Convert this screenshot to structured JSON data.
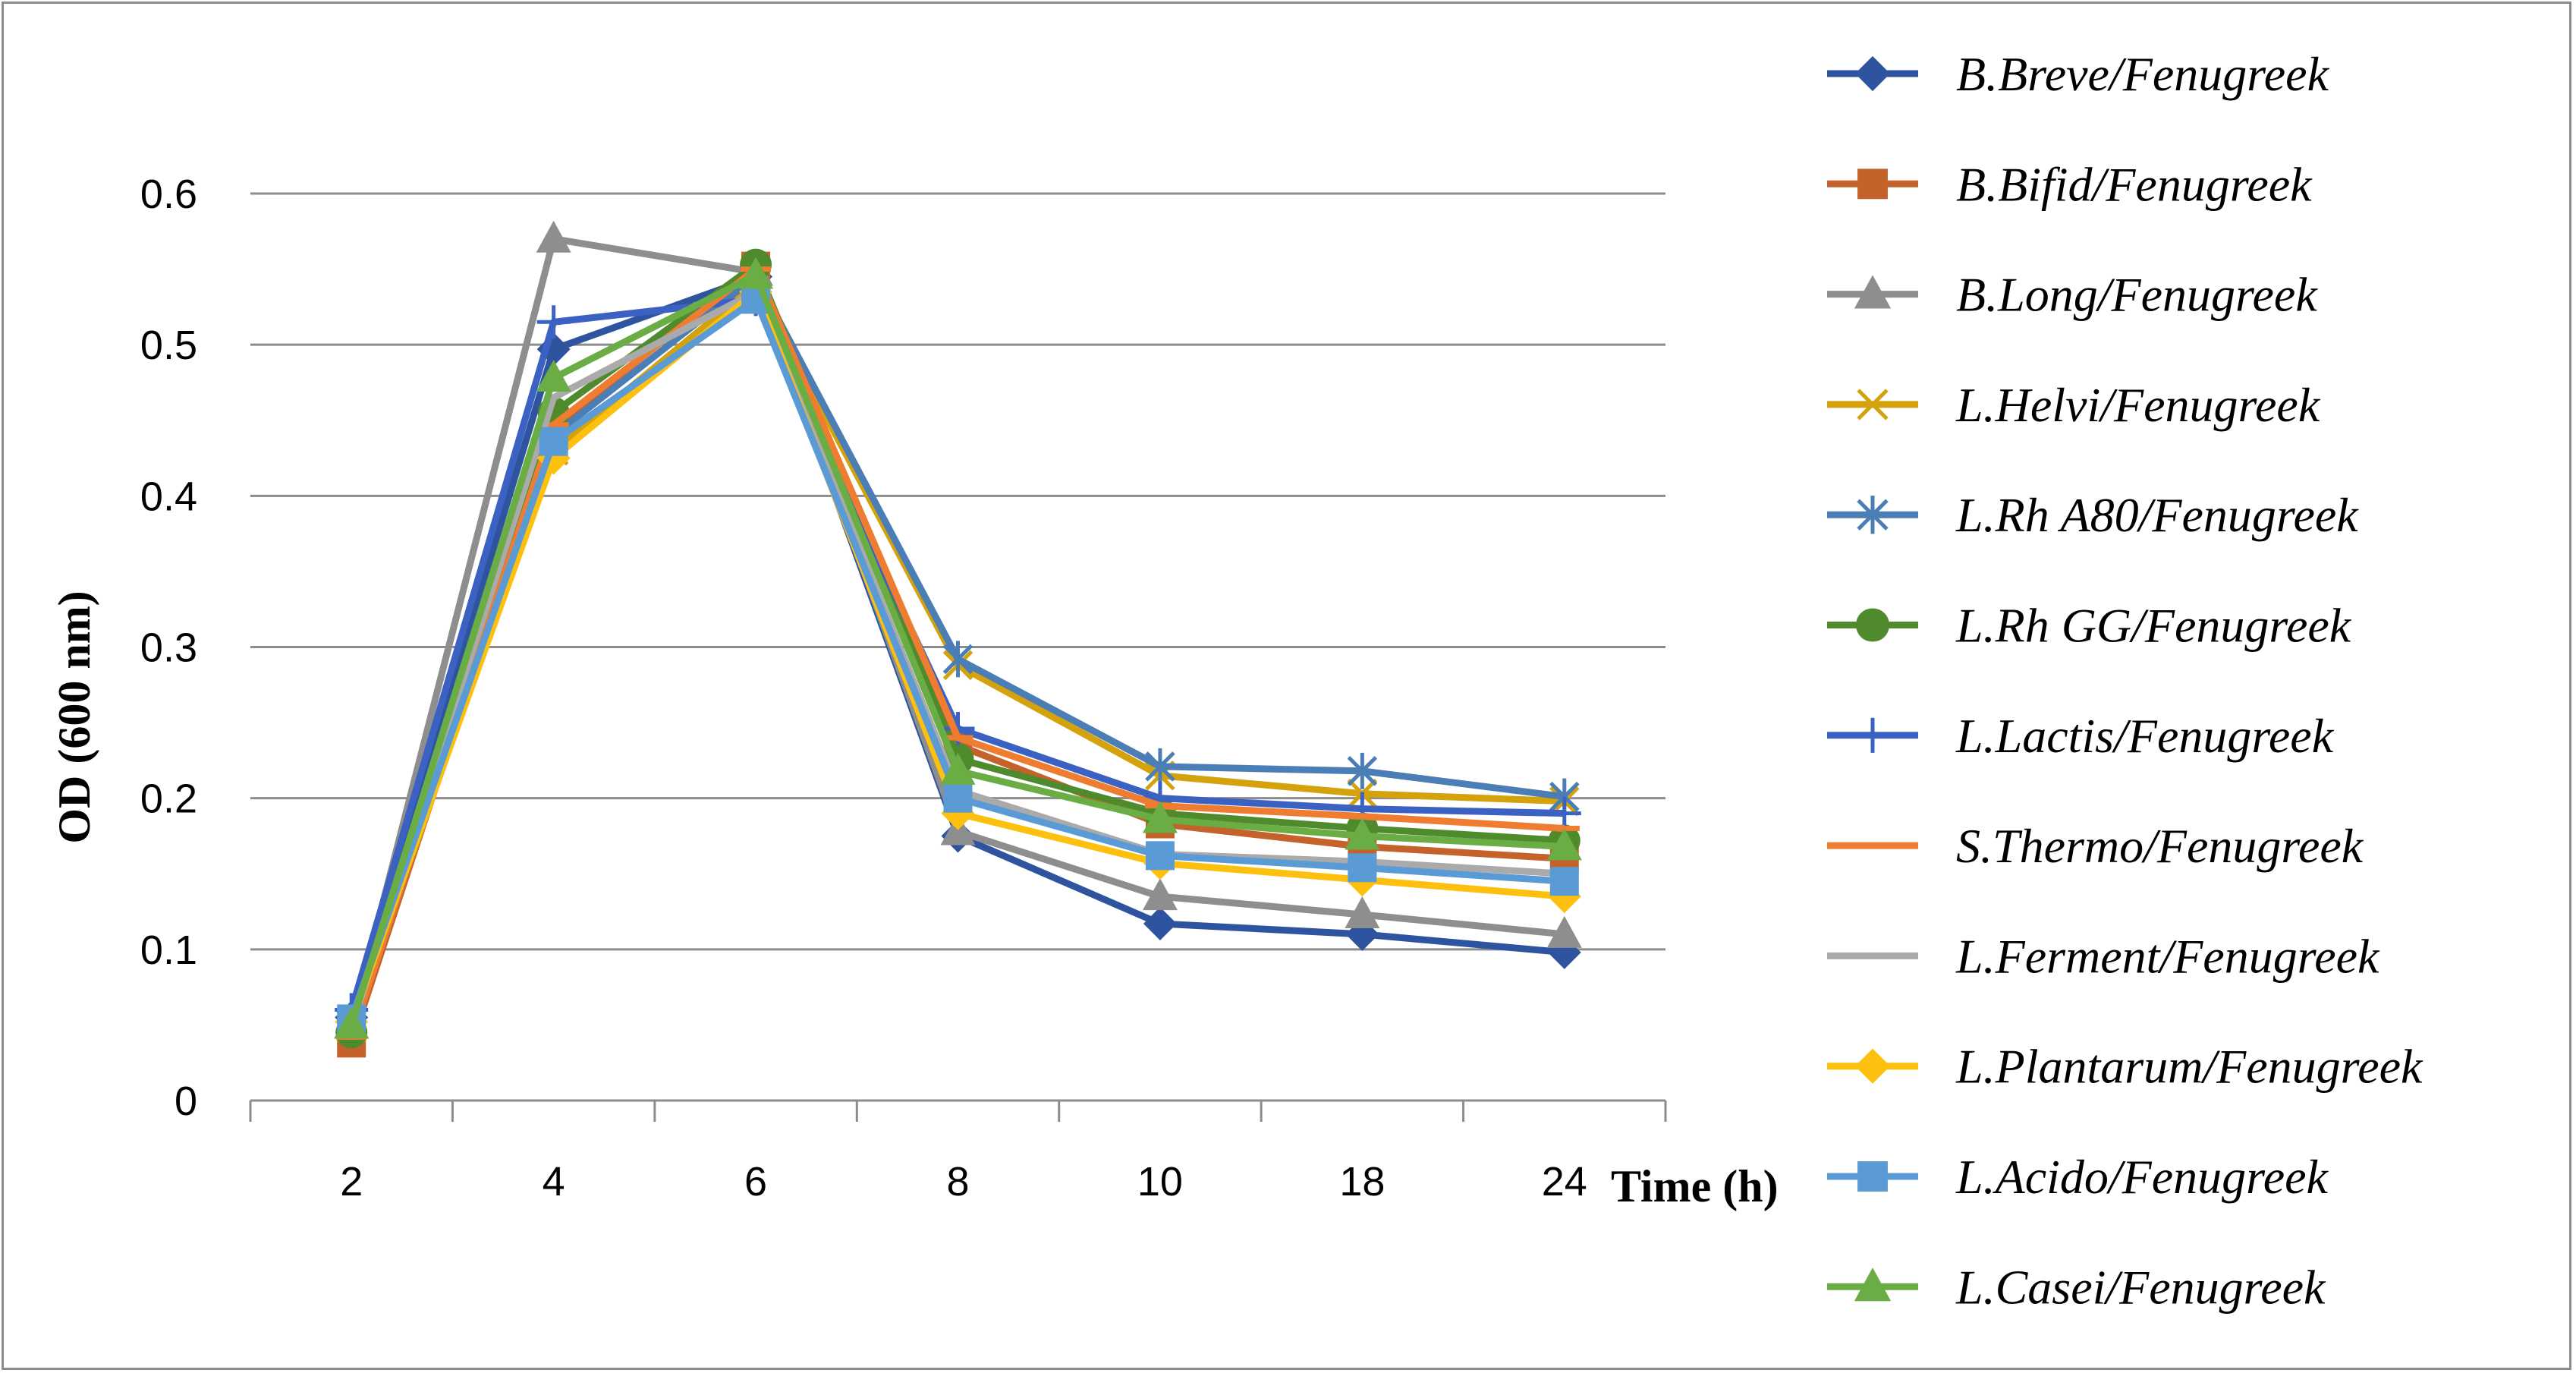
{
  "chart_data": {
    "type": "line",
    "title": "",
    "xlabel": "Time (h)",
    "ylabel": "OD (600 nm)",
    "categories": [
      "2",
      "4",
      "6",
      "8",
      "10",
      "18",
      "24"
    ],
    "ylim": [
      0,
      0.6
    ],
    "yticks": [
      "0",
      "0.1",
      "0.2",
      "0.3",
      "0.4",
      "0.5",
      "0.6"
    ],
    "grid": true,
    "legend_position": "right",
    "series": [
      {
        "name": "B.Breve/Fenugreek",
        "color": "#2e54a0",
        "marker": "diamond",
        "values": [
          0.055,
          0.497,
          0.545,
          0.175,
          0.117,
          0.11,
          0.098
        ]
      },
      {
        "name": "B.Bifid/Fenugreek",
        "color": "#c5612a",
        "marker": "square",
        "values": [
          0.038,
          0.445,
          0.552,
          0.235,
          0.183,
          0.168,
          0.16
        ]
      },
      {
        "name": "B.Long/Fenugreek",
        "color": "#8e8e8e",
        "marker": "triangle",
        "values": [
          0.05,
          0.57,
          0.548,
          0.178,
          0.135,
          0.123,
          0.11
        ]
      },
      {
        "name": "L.Helvi/Fenugreek",
        "color": "#d4a20c",
        "marker": "x",
        "values": [
          0.048,
          0.43,
          0.54,
          0.288,
          0.215,
          0.203,
          0.198
        ]
      },
      {
        "name": "L.Rh A80/Fenugreek",
        "color": "#4a7eb5",
        "marker": "star",
        "values": [
          0.05,
          0.44,
          0.545,
          0.292,
          0.221,
          0.218,
          0.201
        ]
      },
      {
        "name": "L.Rh GG/Fenugreek",
        "color": "#4f8b2c",
        "marker": "circle",
        "values": [
          0.045,
          0.455,
          0.553,
          0.226,
          0.19,
          0.18,
          0.172
        ]
      },
      {
        "name": "L.Lactis/Fenugreek",
        "color": "#3b62c2",
        "marker": "plus",
        "values": [
          0.06,
          0.515,
          0.53,
          0.246,
          0.2,
          0.193,
          0.19
        ]
      },
      {
        "name": "S.Thermo/Fenugreek",
        "color": "#ee7d31",
        "marker": "dash",
        "values": [
          0.042,
          0.447,
          0.55,
          0.24,
          0.195,
          0.188,
          0.18
        ]
      },
      {
        "name": "L.Ferment/Fenugreek",
        "color": "#aaaaaa",
        "marker": "none",
        "values": [
          0.048,
          0.465,
          0.535,
          0.205,
          0.163,
          0.158,
          0.15
        ]
      },
      {
        "name": "L.Plantarum/Fenugreek",
        "color": "#fdc00f",
        "marker": "diamond",
        "values": [
          0.052,
          0.425,
          0.535,
          0.19,
          0.157,
          0.146,
          0.135
        ]
      },
      {
        "name": "L.Acido/Fenugreek",
        "color": "#5b9bd5",
        "marker": "square",
        "values": [
          0.054,
          0.436,
          0.53,
          0.2,
          0.162,
          0.154,
          0.145
        ]
      },
      {
        "name": "L.Casei/Fenugreek",
        "color": "#6aad45",
        "marker": "triangle",
        "values": [
          0.05,
          0.478,
          0.546,
          0.218,
          0.186,
          0.175,
          0.168
        ]
      }
    ]
  }
}
